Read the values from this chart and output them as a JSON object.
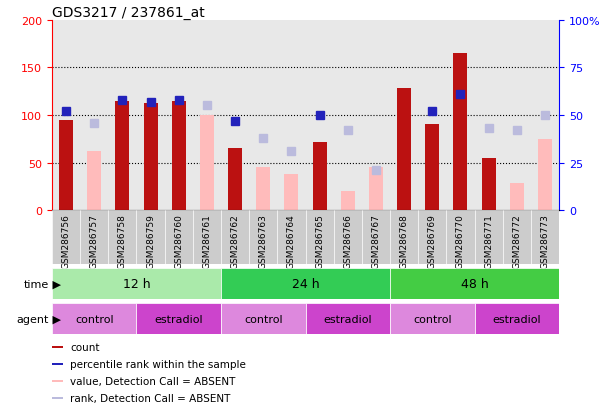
{
  "title": "GDS3217 / 237861_at",
  "samples": [
    "GSM286756",
    "GSM286757",
    "GSM286758",
    "GSM286759",
    "GSM286760",
    "GSM286761",
    "GSM286762",
    "GSM286763",
    "GSM286764",
    "GSM286765",
    "GSM286766",
    "GSM286767",
    "GSM286768",
    "GSM286769",
    "GSM286770",
    "GSM286771",
    "GSM286772",
    "GSM286773"
  ],
  "count_present": [
    95,
    null,
    115,
    112,
    115,
    null,
    65,
    null,
    null,
    72,
    null,
    null,
    128,
    90,
    165,
    55,
    null,
    null
  ],
  "count_absent": [
    null,
    62,
    null,
    null,
    null,
    100,
    null,
    45,
    38,
    null,
    20,
    45,
    null,
    null,
    null,
    null,
    28,
    75
  ],
  "rank_present": [
    52,
    null,
    58,
    57,
    58,
    null,
    47,
    null,
    null,
    50,
    null,
    null,
    null,
    52,
    61,
    null,
    null,
    null
  ],
  "rank_absent": [
    null,
    46,
    null,
    null,
    null,
    55,
    null,
    38,
    31,
    null,
    42,
    21,
    null,
    null,
    null,
    43,
    42,
    50
  ],
  "time_groups": [
    {
      "label": "12 h",
      "start": 0,
      "end": 6,
      "color": "#aaeaaa"
    },
    {
      "label": "24 h",
      "start": 6,
      "end": 12,
      "color": "#33cc55"
    },
    {
      "label": "48 h",
      "start": 12,
      "end": 18,
      "color": "#44cc44"
    }
  ],
  "agent_groups": [
    {
      "label": "control",
      "start": 0,
      "end": 3
    },
    {
      "label": "estradiol",
      "start": 3,
      "end": 6
    },
    {
      "label": "control",
      "start": 6,
      "end": 9
    },
    {
      "label": "estradiol",
      "start": 9,
      "end": 12
    },
    {
      "label": "control",
      "start": 12,
      "end": 15
    },
    {
      "label": "estradiol",
      "start": 15,
      "end": 18
    }
  ],
  "color_control": "#dd88dd",
  "color_estradiol": "#cc44cc",
  "ylim_left": [
    0,
    200
  ],
  "ylim_right": [
    0,
    100
  ],
  "yticks_left": [
    0,
    50,
    100,
    150,
    200
  ],
  "yticks_right": [
    0,
    25,
    50,
    75,
    100
  ],
  "color_count_present": "#bb1111",
  "color_rank_present": "#2222bb",
  "color_count_absent": "#ffbbbb",
  "color_rank_absent": "#bbbbdd",
  "bar_width": 0.5,
  "marker_size": 6
}
